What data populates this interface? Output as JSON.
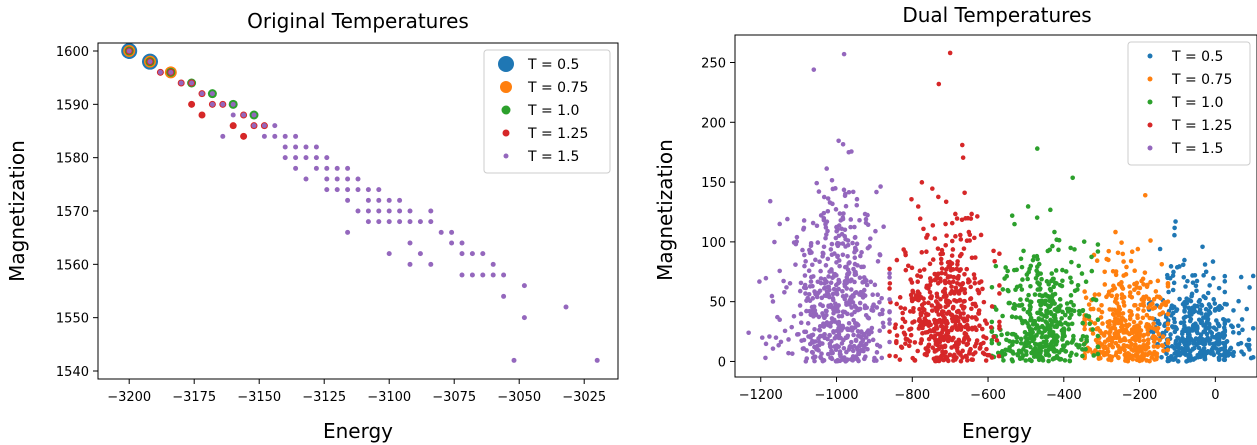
{
  "chart_data": [
    {
      "type": "scatter",
      "title": "Original Temperatures",
      "xlabel": "Energy",
      "ylabel": "Magnetization",
      "xlim": [
        -3212,
        -3012
      ],
      "ylim": [
        1538.5,
        1601.5
      ],
      "x_ticks": [
        -3200,
        -3175,
        -3150,
        -3125,
        -3100,
        -3075,
        -3050,
        -3025
      ],
      "y_ticks": [
        1540,
        1550,
        1560,
        1570,
        1580,
        1590,
        1600
      ],
      "grid": false,
      "legend_position": "top-right",
      "series": [
        {
          "name": "T = 0.5",
          "color": "#1f77b4",
          "marker_size": 8,
          "points": [
            [
              -3200,
              1600
            ],
            [
              -3192,
              1598
            ]
          ]
        },
        {
          "name": "T = 0.75",
          "color": "#ff7f0e",
          "marker_size": 6,
          "points": [
            [
              -3200,
              1600
            ],
            [
              -3192,
              1598
            ],
            [
              -3184,
              1596
            ]
          ]
        },
        {
          "name": "T = 1.0",
          "color": "#2ca02c",
          "marker_size": 4.5,
          "points": [
            [
              -3200,
              1600
            ],
            [
              -3192,
              1598
            ],
            [
              -3184,
              1596
            ],
            [
              -3176,
              1594
            ],
            [
              -3168,
              1592
            ],
            [
              -3160,
              1590
            ],
            [
              -3152,
              1588
            ]
          ]
        },
        {
          "name": "T = 1.25",
          "color": "#d62728",
          "marker_size": 3.5,
          "points": [
            [
              -3200,
              1600
            ],
            [
              -3192,
              1598
            ],
            [
              -3188,
              1596
            ],
            [
              -3184,
              1596
            ],
            [
              -3180,
              1594
            ],
            [
              -3176,
              1594
            ],
            [
              -3176,
              1590
            ],
            [
              -3172,
              1592
            ],
            [
              -3172,
              1588
            ],
            [
              -3168,
              1590
            ],
            [
              -3164,
              1590
            ],
            [
              -3160,
              1586
            ],
            [
              -3156,
              1588
            ],
            [
              -3156,
              1584
            ],
            [
              -3152,
              1586
            ],
            [
              -3148,
              1586
            ]
          ]
        },
        {
          "name": "T = 1.5",
          "color": "#9467bd",
          "marker_size": 2.5,
          "points": [
            [
              -3200,
              1600
            ],
            [
              -3192,
              1598
            ],
            [
              -3188,
              1596
            ],
            [
              -3184,
              1596
            ],
            [
              -3180,
              1594
            ],
            [
              -3176,
              1594
            ],
            [
              -3172,
              1592
            ],
            [
              -3168,
              1592
            ],
            [
              -3168,
              1590
            ],
            [
              -3164,
              1590
            ],
            [
              -3164,
              1584
            ],
            [
              -3160,
              1590
            ],
            [
              -3160,
              1588
            ],
            [
              -3156,
              1588
            ],
            [
              -3152,
              1588
            ],
            [
              -3152,
              1586
            ],
            [
              -3148,
              1586
            ],
            [
              -3148,
              1584
            ],
            [
              -3144,
              1586
            ],
            [
              -3144,
              1584
            ],
            [
              -3140,
              1584
            ],
            [
              -3140,
              1582
            ],
            [
              -3140,
              1580
            ],
            [
              -3136,
              1584
            ],
            [
              -3136,
              1582
            ],
            [
              -3136,
              1580
            ],
            [
              -3136,
              1578
            ],
            [
              -3132,
              1582
            ],
            [
              -3132,
              1580
            ],
            [
              -3132,
              1576
            ],
            [
              -3128,
              1582
            ],
            [
              -3128,
              1580
            ],
            [
              -3128,
              1578
            ],
            [
              -3124,
              1580
            ],
            [
              -3124,
              1578
            ],
            [
              -3124,
              1576
            ],
            [
              -3124,
              1574
            ],
            [
              -3120,
              1578
            ],
            [
              -3120,
              1576
            ],
            [
              -3120,
              1574
            ],
            [
              -3116,
              1578
            ],
            [
              -3116,
              1576
            ],
            [
              -3116,
              1574
            ],
            [
              -3116,
              1572
            ],
            [
              -3116,
              1566
            ],
            [
              -3112,
              1576
            ],
            [
              -3112,
              1574
            ],
            [
              -3112,
              1570
            ],
            [
              -3108,
              1574
            ],
            [
              -3108,
              1572
            ],
            [
              -3108,
              1570
            ],
            [
              -3108,
              1568
            ],
            [
              -3104,
              1574
            ],
            [
              -3104,
              1572
            ],
            [
              -3104,
              1570
            ],
            [
              -3104,
              1568
            ],
            [
              -3100,
              1572
            ],
            [
              -3100,
              1570
            ],
            [
              -3100,
              1568
            ],
            [
              -3100,
              1562
            ],
            [
              -3096,
              1572
            ],
            [
              -3096,
              1570
            ],
            [
              -3096,
              1568
            ],
            [
              -3092,
              1570
            ],
            [
              -3092,
              1568
            ],
            [
              -3092,
              1564
            ],
            [
              -3092,
              1560
            ],
            [
              -3088,
              1568
            ],
            [
              -3088,
              1562
            ],
            [
              -3084,
              1570
            ],
            [
              -3084,
              1568
            ],
            [
              -3084,
              1560
            ],
            [
              -3080,
              1566
            ],
            [
              -3076,
              1566
            ],
            [
              -3076,
              1564
            ],
            [
              -3072,
              1564
            ],
            [
              -3072,
              1562
            ],
            [
              -3072,
              1558
            ],
            [
              -3068,
              1562
            ],
            [
              -3068,
              1558
            ],
            [
              -3064,
              1562
            ],
            [
              -3064,
              1558
            ],
            [
              -3060,
              1560
            ],
            [
              -3060,
              1558
            ],
            [
              -3056,
              1558
            ],
            [
              -3056,
              1554
            ],
            [
              -3052,
              1542
            ],
            [
              -3048,
              1556
            ],
            [
              -3048,
              1550
            ],
            [
              -3032,
              1552
            ],
            [
              -3020,
              1542
            ]
          ]
        }
      ]
    },
    {
      "type": "scatter",
      "title": "Dual Temperatures",
      "xlabel": "Energy",
      "ylabel": "Magnetization",
      "xlim": [
        -1268,
        110
      ],
      "ylim": [
        -13,
        273
      ],
      "x_ticks": [
        -1200,
        -1000,
        -800,
        -600,
        -400,
        -200,
        0
      ],
      "y_ticks": [
        0,
        50,
        100,
        150,
        200,
        250
      ],
      "grid": false,
      "legend_position": "top-right",
      "series": [
        {
          "name": "T = 0.5",
          "color": "#1f77b4",
          "marker_size": 2.3,
          "clusters": [
            {
              "count": 360,
              "x_min": -175,
              "x_max": 25,
              "x_mean": -60,
              "x_sd": 55,
              "y_mode": 30,
              "y_sd": 28,
              "y_max": 112
            },
            {
              "count": 55,
              "x_min": 10,
              "x_max": 100,
              "x_mean": 35,
              "x_sd": 35,
              "y_mode": 25,
              "y_sd": 25,
              "y_max": 90
            }
          ]
        },
        {
          "name": "T = 0.75",
          "color": "#ff7f0e",
          "marker_size": 2.3,
          "clusters": [
            {
              "count": 420,
              "x_min": -345,
              "x_max": -125,
              "x_mean": -235,
              "x_sd": 55,
              "y_mode": 30,
              "y_sd": 30,
              "y_max": 128
            }
          ]
        },
        {
          "name": "T = 1.0",
          "color": "#2ca02c",
          "marker_size": 2.3,
          "clusters": [
            {
              "count": 460,
              "x_min": -590,
              "x_max": -310,
              "x_mean": -455,
              "x_sd": 65,
              "y_mode": 40,
              "y_sd": 35,
              "y_max": 178
            }
          ]
        },
        {
          "name": "T = 1.25",
          "color": "#d62728",
          "marker_size": 2.3,
          "clusters": [
            {
              "count": 520,
              "x_min": -860,
              "x_max": -570,
              "x_mean": -715,
              "x_sd": 65,
              "y_mode": 50,
              "y_sd": 40,
              "y_max": 190
            }
          ]
        },
        {
          "name": "T = 1.5",
          "color": "#9467bd",
          "marker_size": 2.3,
          "clusters": [
            {
              "count": 540,
              "x_min": -1150,
              "x_max": -860,
              "x_mean": -995,
              "x_sd": 60,
              "y_mode": 55,
              "y_sd": 55,
              "y_max": 258
            },
            {
              "count": 25,
              "x_min": -1230,
              "x_max": -1060,
              "x_mean": -1150,
              "x_sd": 45,
              "y_mode": 45,
              "y_sd": 40,
              "y_max": 135
            }
          ]
        }
      ],
      "extra_points": [
        {
          "series": "T = 1.25",
          "x": -700,
          "y": 258
        },
        {
          "series": "T = 1.25",
          "x": -730,
          "y": 232
        },
        {
          "series": "T = 1.25",
          "x": -668,
          "y": 181
        },
        {
          "series": "T = 1.5",
          "x": -980,
          "y": 257
        },
        {
          "series": "T = 1.5",
          "x": -1060,
          "y": 244
        },
        {
          "series": "T = 1.5",
          "x": -1232,
          "y": 24
        },
        {
          "series": "T = 1.5",
          "x": -1175,
          "y": 134
        },
        {
          "series": "T = 1.0",
          "x": -470,
          "y": 178
        },
        {
          "series": "T = 0.75",
          "x": -185,
          "y": 139
        },
        {
          "series": "T = 0.5",
          "x": 25,
          "y": 48
        },
        {
          "series": "T = 0.5",
          "x": 90,
          "y": 10
        },
        {
          "series": "T = 0.5",
          "x": -105,
          "y": 117
        }
      ]
    }
  ]
}
